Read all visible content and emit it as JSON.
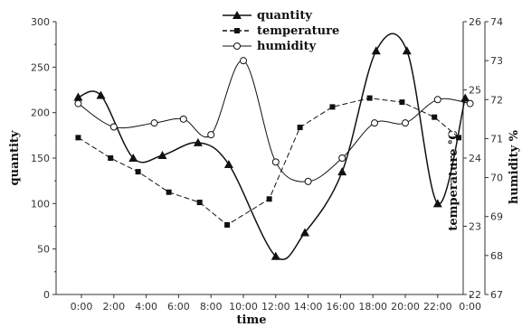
{
  "chart_data": {
    "type": "line",
    "xlabel": "time",
    "categories": [
      "0:00",
      "2:00",
      "4:00",
      "6:00",
      "8:00",
      "10:00",
      "12:00",
      "14:00",
      "16:00",
      "18:00",
      "20:00",
      "22:00",
      "0:00"
    ],
    "left_axis": {
      "label": "quantity",
      "ylim": [
        0,
        300
      ],
      "ticks": [
        "0",
        "50",
        "100",
        "150",
        "200",
        "250",
        "300"
      ]
    },
    "right_axis_temperature": {
      "label": "temperature ℃",
      "ylim": [
        22,
        26
      ],
      "ticks": [
        "22",
        "23",
        "24",
        "25",
        "26"
      ]
    },
    "right_axis_humidity": {
      "label": "humidity %",
      "ylim": [
        67,
        74
      ],
      "ticks": [
        "67",
        "68",
        "69",
        "70",
        "71",
        "72",
        "73",
        "74"
      ]
    },
    "legend": {
      "position": "top-center"
    },
    "series": [
      {
        "name": "quantity",
        "axis": "left",
        "marker": "triangle",
        "line": "solid",
        "x": [
          -0.2,
          1.2,
          3.2,
          5.0,
          7.2,
          9.1,
          12.0,
          13.8,
          16.1,
          18.2,
          20.1,
          22.0,
          23.7
        ],
        "y": [
          217,
          219,
          150,
          153,
          167,
          143,
          42,
          68,
          135,
          268,
          268,
          100,
          216
        ]
      },
      {
        "name": "temperature",
        "axis": "right_temperature",
        "marker": "square",
        "line": "dashed",
        "x": [
          -0.2,
          1.8,
          3.5,
          5.4,
          7.3,
          9.0,
          11.6,
          13.5,
          15.5,
          17.8,
          19.8,
          21.8,
          23.3
        ],
        "y": [
          24.3,
          24.0,
          23.8,
          23.5,
          23.35,
          23.02,
          23.4,
          24.45,
          24.75,
          24.88,
          24.82,
          24.6,
          24.3
        ]
      },
      {
        "name": "humidity",
        "axis": "right_humidity",
        "marker": "circle",
        "line": "solid",
        "x": [
          -0.2,
          2.0,
          4.5,
          6.3,
          8.0,
          10.0,
          12.0,
          14.0,
          16.1,
          18.1,
          20.0,
          22.0,
          24.0
        ],
        "y": [
          71.9,
          71.3,
          71.4,
          71.5,
          71.1,
          73.0,
          70.4,
          69.9,
          70.5,
          71.4,
          71.4,
          72.0,
          71.9
        ]
      }
    ]
  }
}
